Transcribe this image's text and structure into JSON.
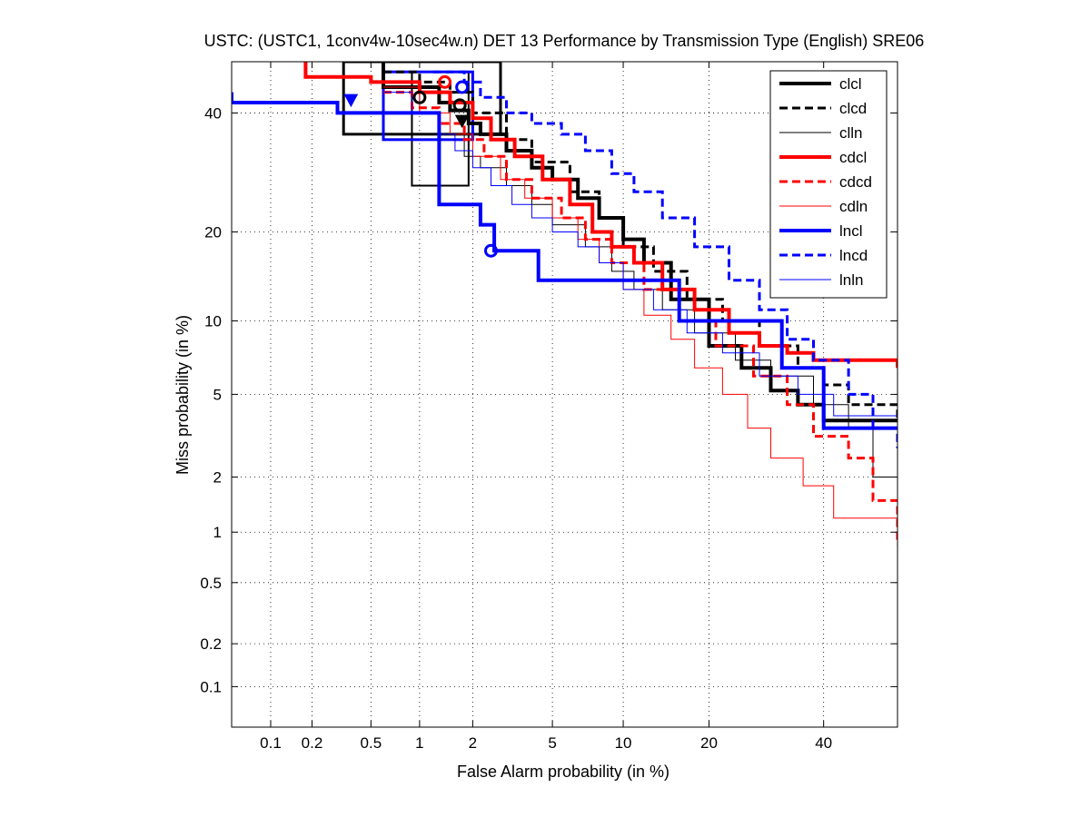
{
  "chart_data": {
    "type": "line",
    "title": "USTC: (USTC1, 1conv4w-10sec4w.n) DET 13 Performance by Transmission Type (English) SRE06",
    "xlabel": "False Alarm probability (in %)",
    "ylabel": "Miss probability (in %)",
    "x_scale": "normal-deviate",
    "y_scale": "normal-deviate",
    "xlim": [
      0.05,
      55
    ],
    "ylim": [
      0.05,
      50
    ],
    "xticks": [
      0.1,
      0.2,
      0.5,
      1,
      2,
      5,
      10,
      20,
      40
    ],
    "xtick_labels": [
      "0.1",
      "0.2",
      "0.5",
      "1",
      "2",
      "5",
      "10",
      "20",
      "40"
    ],
    "yticks": [
      0.1,
      0.2,
      0.5,
      1,
      2,
      5,
      10,
      20,
      40
    ],
    "ytick_labels": [
      "0.1",
      "0.2",
      "0.5",
      "1",
      "2",
      "5",
      "10",
      "20",
      "40"
    ],
    "grid": true,
    "legend_position": "top-right",
    "series": [
      {
        "name": "clcl",
        "color": "#000000",
        "style": "solid",
        "width": 4,
        "x": [
          0.6,
          0.6,
          1.3,
          1.3,
          1.5,
          1.9,
          2.2,
          3.0,
          4.0,
          5.0,
          6.5,
          8.0,
          10.0,
          12.0,
          15.0,
          20.0,
          25.0,
          30.0,
          35.0,
          40.0,
          55.0
        ],
        "y": [
          50.0,
          45.0,
          44.0,
          42.0,
          40.5,
          38.0,
          36.0,
          33.0,
          30.0,
          28.0,
          25.0,
          22.0,
          19.0,
          16.0,
          12.0,
          8.0,
          6.5,
          5.2,
          4.5,
          3.8,
          3.8
        ]
      },
      {
        "name": "clcd",
        "color": "#000000",
        "style": "dashed",
        "width": 3,
        "x": [
          0.6,
          1.0,
          1.5,
          2.0,
          3.0,
          4.0,
          6.0,
          8.0,
          10.0,
          13.0,
          17.0,
          22.0,
          28.0,
          35.0,
          40.0,
          45.0,
          55.0
        ],
        "y": [
          48.0,
          46.0,
          44.0,
          40.0,
          35.0,
          31.0,
          26.0,
          22.0,
          18.0,
          15.0,
          12.0,
          10.0,
          8.0,
          6.5,
          5.5,
          4.5,
          3.8
        ]
      },
      {
        "name": "clln",
        "color": "#000000",
        "style": "solid",
        "width": 1,
        "x": [
          0.6,
          1.0,
          1.3,
          1.8,
          2.2,
          3.0,
          4.0,
          5.0,
          7.0,
          9.0,
          11.0,
          14.0,
          18.0,
          24.0,
          30.0,
          38.0,
          45.0,
          50.0,
          55.0
        ],
        "y": [
          46.0,
          40.0,
          36.0,
          32.0,
          30.0,
          27.0,
          24.0,
          21.0,
          18.0,
          15.0,
          13.0,
          11.0,
          9.0,
          7.0,
          6.0,
          4.5,
          3.5,
          2.0,
          1.8
        ]
      },
      {
        "name": "cdcl",
        "color": "#ff0000",
        "style": "solid",
        "width": 4,
        "x": [
          0.18,
          0.18,
          0.5,
          0.5,
          1.0,
          1.5,
          2.0,
          2.5,
          3.3,
          4.5,
          6.0,
          7.5,
          9.0,
          11.0,
          14.0,
          18.0,
          23.0,
          28.0,
          33.0,
          38.0,
          55.0
        ],
        "y": [
          50.0,
          47.0,
          47.0,
          46.0,
          44.0,
          42.0,
          39.0,
          35.0,
          32.0,
          28.0,
          24.0,
          20.0,
          18.0,
          16.0,
          13.0,
          11.0,
          9.0,
          8.0,
          7.5,
          7.0,
          6.5
        ]
      },
      {
        "name": "cdcd",
        "color": "#ff0000",
        "style": "dashed",
        "width": 3,
        "x": [
          0.6,
          0.9,
          1.3,
          1.8,
          2.3,
          3.0,
          4.0,
          5.5,
          7.0,
          9.0,
          12.0,
          16.0,
          21.0,
          27.0,
          33.0,
          38.0,
          45.0,
          50.0,
          55.0
        ],
        "y": [
          44.0,
          41.0,
          38.0,
          35.0,
          32.0,
          28.0,
          25.0,
          22.0,
          19.0,
          16.0,
          13.0,
          10.0,
          8.0,
          6.0,
          4.5,
          3.2,
          2.5,
          1.5,
          0.85
        ]
      },
      {
        "name": "cdln",
        "color": "#ff0000",
        "style": "solid",
        "width": 1,
        "x": [
          0.6,
          1.0,
          1.5,
          2.0,
          2.8,
          3.7,
          5.0,
          6.5,
          8.0,
          10.0,
          12.0,
          15.0,
          18.0,
          22.0,
          26.0,
          30.0,
          36.0,
          42.0,
          55.0
        ],
        "y": [
          45.0,
          40.0,
          36.0,
          32.0,
          28.0,
          25.0,
          22.0,
          19.0,
          16.0,
          13.0,
          10.5,
          8.5,
          6.5,
          5.0,
          3.5,
          2.5,
          1.8,
          1.2,
          1.2
        ]
      },
      {
        "name": "lncl",
        "color": "#0000ff",
        "style": "solid",
        "width": 4,
        "x": [
          0.05,
          0.05,
          0.3,
          0.3,
          1.3,
          1.3,
          2.2,
          2.6,
          4.3,
          4.3,
          16.0,
          16.0,
          32.0,
          32.0,
          40.0,
          55.0
        ],
        "y": [
          44.0,
          42.0,
          42.0,
          40.0,
          38.0,
          24.0,
          21.0,
          17.5,
          17.5,
          14.0,
          14.0,
          10.0,
          10.0,
          6.5,
          3.5,
          3.5
        ]
      },
      {
        "name": "lncd",
        "color": "#0000ff",
        "style": "dashed",
        "width": 3,
        "x": [
          1.2,
          1.8,
          2.2,
          3.0,
          4.0,
          5.5,
          7.0,
          9.0,
          11.0,
          14.0,
          18.0,
          23.0,
          28.0,
          33.0,
          38.0,
          45.0,
          50.0,
          55.0
        ],
        "y": [
          48.0,
          46.0,
          43.0,
          40.0,
          38.0,
          36.0,
          33.0,
          29.0,
          26.0,
          22.0,
          18.0,
          14.0,
          11.0,
          8.5,
          7.0,
          5.0,
          3.5,
          2.8
        ]
      },
      {
        "name": "lnln",
        "color": "#0000ff",
        "style": "solid",
        "width": 1,
        "x": [
          0.6,
          0.9,
          1.3,
          1.6,
          2.0,
          2.5,
          3.2,
          4.0,
          5.0,
          6.5,
          8.0,
          10.0,
          13.0,
          17.0,
          22.0,
          28.0,
          35.0,
          42.0,
          55.0
        ],
        "y": [
          44.0,
          40.0,
          36.0,
          33.0,
          30.0,
          27.0,
          24.0,
          22.0,
          20.0,
          18.0,
          16.0,
          13.0,
          11.0,
          9.0,
          7.5,
          6.0,
          5.0,
          4.0,
          3.8
        ]
      }
    ],
    "markers": [
      {
        "series": "clcl",
        "shape": "circle",
        "x": 1.0,
        "y": 43.0
      },
      {
        "series": "clcl",
        "shape": "circle",
        "x": 1.7,
        "y": 41.5
      },
      {
        "series": "clcl",
        "shape": "triangle-down",
        "x": 1.75,
        "y": 38.5
      },
      {
        "series": "cdcl",
        "shape": "circle",
        "x": 1.4,
        "y": 46.0
      },
      {
        "series": "lncl",
        "shape": "triangle-down",
        "x": 0.37,
        "y": 42.5
      },
      {
        "series": "lncl",
        "shape": "circle",
        "x": 1.75,
        "y": 45.0
      },
      {
        "series": "lncl",
        "shape": "circle",
        "x": 2.5,
        "y": 17.5
      }
    ],
    "boxes": [
      {
        "series": "clcl",
        "color": "#000000",
        "width": 3,
        "x": [
          0.33,
          2.8
        ],
        "y": [
          36.0,
          50.0
        ]
      },
      {
        "series": "clcl",
        "color": "#000000",
        "width": 2,
        "x": [
          0.9,
          1.9
        ],
        "y": [
          27.0,
          48.0
        ]
      },
      {
        "series": "lncl",
        "color": "#0000ff",
        "width": 3,
        "x": [
          0.6,
          2.0
        ],
        "y": [
          35.0,
          48.0
        ]
      }
    ]
  }
}
